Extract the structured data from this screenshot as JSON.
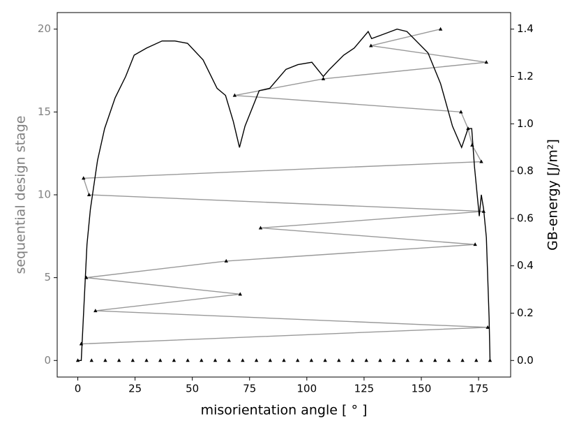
{
  "chart_data": {
    "type": "line",
    "xlabel": "misorientation angle [ ° ]",
    "ylabel": "sequential design stage",
    "y2label": "GB-energy [J/m²]",
    "ylabel_color": "#808080",
    "xlim": [
      -9,
      189
    ],
    "ylim": [
      -1,
      21
    ],
    "y2lim": [
      -0.07,
      1.47
    ],
    "xticks": [
      0,
      25,
      50,
      75,
      100,
      125,
      150,
      175
    ],
    "yticks": [
      0,
      5,
      10,
      15,
      20
    ],
    "y2ticks": [
      {
        "value": 0,
        "label": "0.0"
      },
      0.2,
      0.4,
      0.6,
      0.8,
      {
        "value": 1,
        "label": "1.0"
      },
      1.2,
      1.4
    ],
    "series": [
      {
        "color": "#999999",
        "marker": "triangle",
        "marker_color": "#000000",
        "line": true,
        "x": [
          1.5,
          179,
          7.7,
          70.9,
          3.7,
          64.8,
          173.5,
          79.8,
          177.2,
          4.9,
          2.5,
          176.2,
          172.2,
          170.4,
          167.3,
          68.5,
          107.2,
          178.4,
          128,
          158.4
        ],
        "values": [
          1,
          2,
          3,
          4,
          5,
          6,
          7,
          8,
          9,
          10,
          11,
          12,
          13,
          14,
          15,
          16,
          17,
          18,
          19,
          20
        ]
      },
      {
        "color": "#000000",
        "marker": "triangle",
        "marker_color": "#000000",
        "line": false,
        "x": [
          0,
          6,
          12,
          18,
          24,
          30,
          36,
          42,
          48,
          54,
          60,
          66,
          72,
          78,
          84,
          90,
          96,
          102,
          108,
          114,
          120,
          126,
          132,
          138,
          144,
          150,
          156,
          162,
          168,
          174,
          180
        ],
        "values": [
          0,
          0,
          0,
          0,
          0,
          0,
          0,
          0,
          0,
          0,
          0,
          0,
          0,
          0,
          0,
          0,
          0,
          0,
          0,
          0,
          0,
          0,
          0,
          0,
          0,
          0,
          0,
          0,
          0,
          0,
          0
        ]
      },
      {
        "color": "#000000",
        "axis": "y2",
        "marker": "none",
        "line": true,
        "x": [
          0,
          1.5,
          4,
          5.5,
          8.6,
          11.7,
          16.3,
          20.9,
          24.6,
          30,
          36.8,
          42.4,
          47.9,
          54.7,
          60.8,
          64.5,
          67.9,
          70.6,
          73,
          79.2,
          83.8,
          90.9,
          96.1,
          102.2,
          107.2,
          109.9,
          116.1,
          120.7,
          126.8,
          128.3,
          133.9,
          139.4,
          143.7,
          152.9,
          158.4,
          163.6,
          167.6,
          170.4,
          172,
          173.2,
          175.3,
          176.2,
          177.2,
          178.4,
          179.6,
          180
        ],
        "values": [
          0,
          0,
          0.49,
          0.64,
          0.845,
          0.98,
          1.11,
          1.2,
          1.29,
          1.32,
          1.35,
          1.35,
          1.34,
          1.27,
          1.15,
          1.12,
          1.01,
          0.9,
          0.99,
          1.14,
          1.15,
          1.23,
          1.25,
          1.26,
          1.2,
          1.23,
          1.29,
          1.32,
          1.39,
          1.36,
          1.38,
          1.4,
          1.39,
          1.3,
          1.17,
          0.99,
          0.9,
          0.98,
          0.98,
          0.82,
          0.61,
          0.7,
          0.64,
          0.52,
          0.18,
          0
        ]
      }
    ]
  }
}
